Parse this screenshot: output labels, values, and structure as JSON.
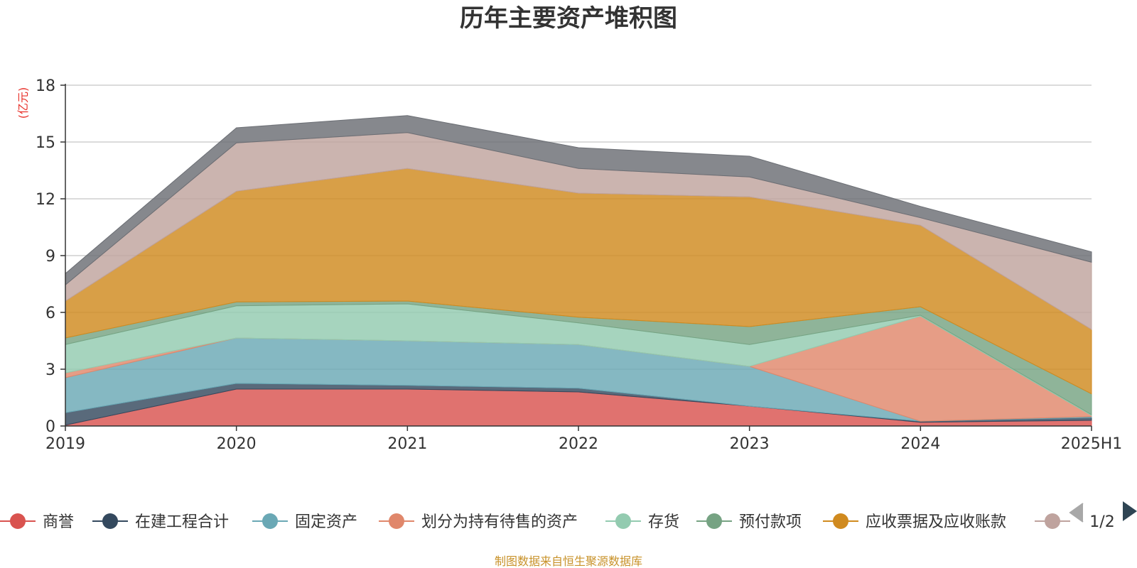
{
  "chart_data": {
    "type": "area",
    "stacked": true,
    "title": "历年主要资产堆积图",
    "ylabel": "(亿元)",
    "x": [
      "2019",
      "2020",
      "2021",
      "2022",
      "2023",
      "2024",
      "2025H1"
    ],
    "ylim": [
      0,
      18
    ],
    "yticks": [
      "0",
      "3",
      "6",
      "9",
      "12",
      "15",
      "18"
    ],
    "grid": true,
    "series": [
      {
        "name": "商誉",
        "color": "#d9534f",
        "values": [
          0.05,
          1.95,
          1.95,
          1.8,
          1.05,
          0.2,
          0.3
        ]
      },
      {
        "name": "在建工程合计",
        "color": "#34495e",
        "values": [
          0.65,
          0.3,
          0.2,
          0.2,
          0.0,
          0.05,
          0.15
        ]
      },
      {
        "name": "固定资产",
        "color": "#6aa8b5",
        "values": [
          1.85,
          2.4,
          2.35,
          2.3,
          2.1,
          0.0,
          0.05
        ]
      },
      {
        "name": "划分为持有待售的资产",
        "color": "#e0876b",
        "values": [
          0.25,
          0.0,
          0.0,
          0.0,
          0.0,
          5.55,
          0.05
        ]
      },
      {
        "name": "存货",
        "color": "#93cbb0",
        "values": [
          1.5,
          1.7,
          1.95,
          1.15,
          1.15,
          0.05,
          0.05
        ]
      },
      {
        "name": "预付款项",
        "color": "#76a383",
        "values": [
          0.35,
          0.2,
          0.15,
          0.3,
          0.95,
          0.45,
          1.1
        ]
      },
      {
        "name": "应收票据及应收账款",
        "color": "#d08a1f",
        "values": [
          1.95,
          5.85,
          7.0,
          6.55,
          6.85,
          4.3,
          3.4
        ]
      },
      {
        "name": "",
        "color": "#bfa39e",
        "values": [
          0.85,
          2.55,
          1.9,
          1.3,
          1.05,
          0.4,
          3.55
        ]
      },
      {
        "name": "",
        "color": "#6b6e74",
        "values": [
          0.6,
          0.8,
          0.9,
          1.1,
          1.1,
          0.6,
          0.55
        ]
      }
    ],
    "legend_position": "bottom",
    "legend_page": "1/2"
  },
  "footer": {
    "source": "制图数据来自恒生聚源数据库"
  }
}
